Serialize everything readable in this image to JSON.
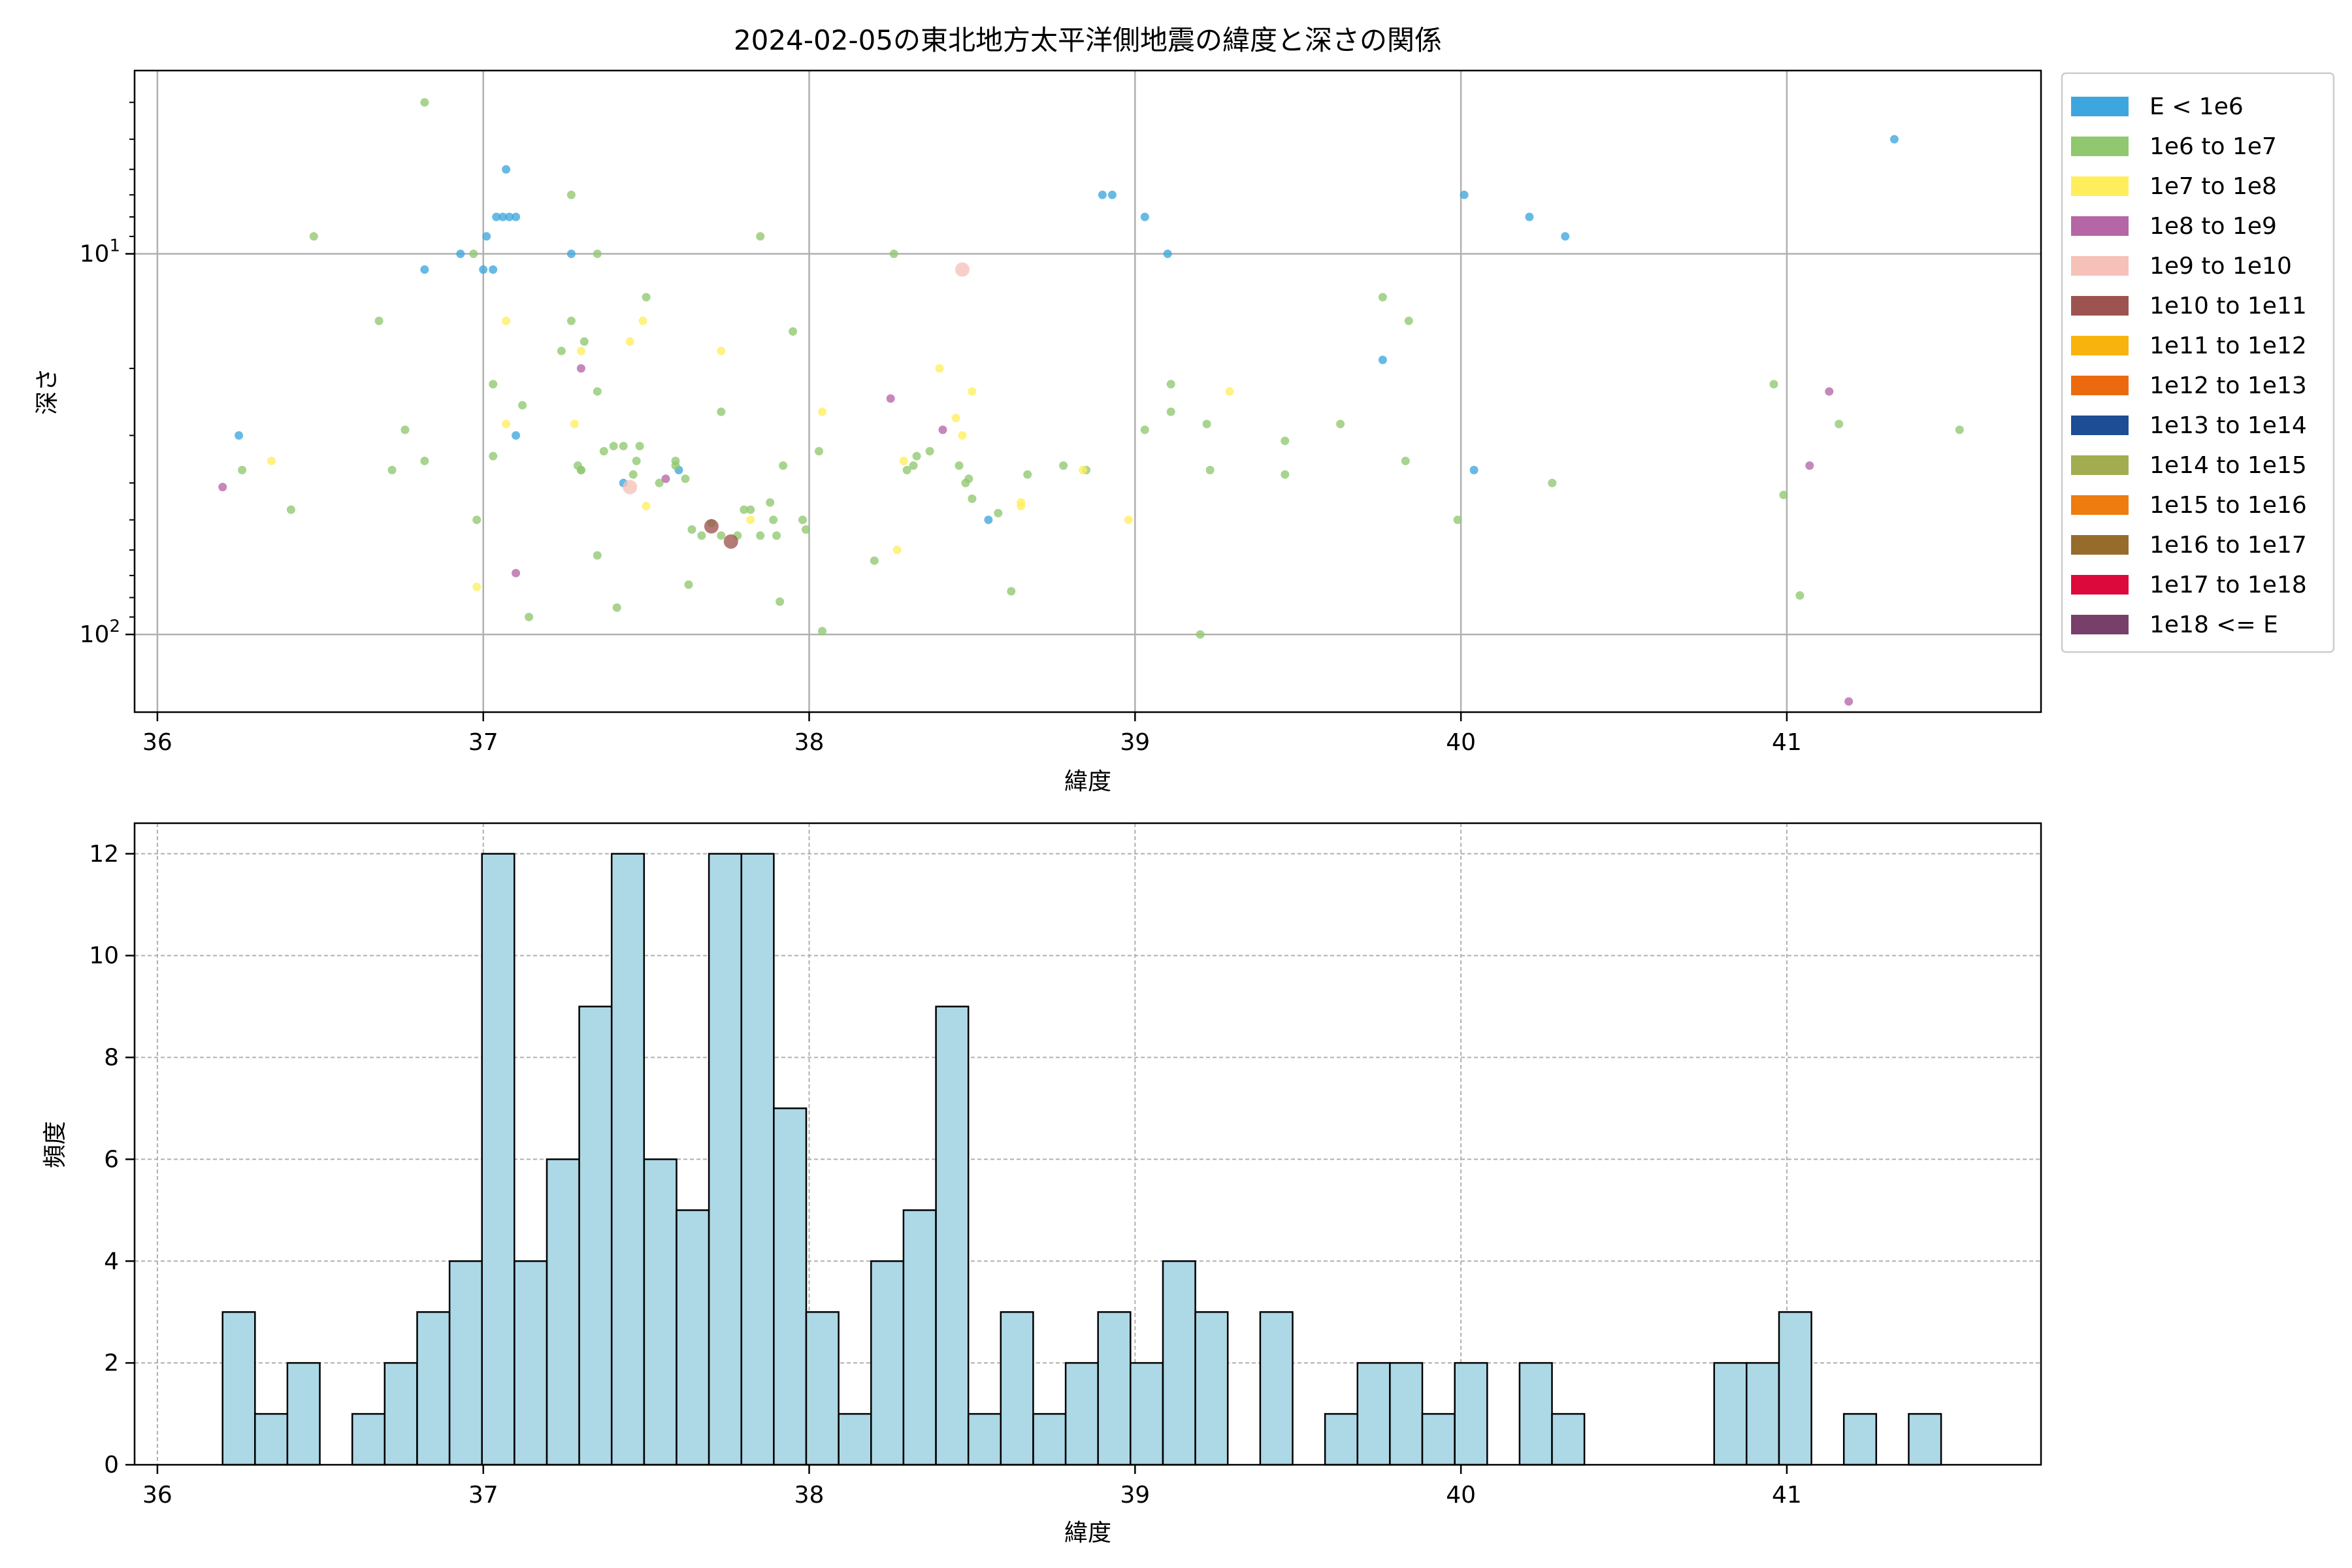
{
  "chart_data": [
    {
      "type": "scatter",
      "title": "2024-02-05の東北地方太平洋側地震の緯度と深さの関係",
      "xlabel": "緯度",
      "ylabel": "深さ",
      "xlim": [
        35.93,
        41.78
      ],
      "ylim": [
        160,
        3.3
      ],
      "y_scale": "log",
      "y_inverted": true,
      "grid": true,
      "legend_position": "outside-right",
      "x_ticks": [
        {
          "v": 36,
          "label": "36"
        },
        {
          "v": 37,
          "label": "37"
        },
        {
          "v": 38,
          "label": "38"
        },
        {
          "v": 39,
          "label": "39"
        },
        {
          "v": 40,
          "label": "40"
        },
        {
          "v": 41,
          "label": "41"
        }
      ],
      "y_ticks": [
        {
          "v": 10,
          "base": "10",
          "exp": "1"
        },
        {
          "v": 100,
          "base": "10",
          "exp": "2"
        }
      ],
      "legend": [
        {
          "label": "E < 1e6",
          "color": "#3ea6de"
        },
        {
          "label": "1e6 to 1e7",
          "color": "#8fc86f"
        },
        {
          "label": "1e7 to 1e8",
          "color": "#ffee5c"
        },
        {
          "label": "1e8 to 1e9",
          "color": "#b566a6"
        },
        {
          "label": "1e9 to 1e10",
          "color": "#f6c1b8"
        },
        {
          "label": "1e10 to 1e11",
          "color": "#9d5450"
        },
        {
          "label": "1e11 to 1e12",
          "color": "#f8b40c"
        },
        {
          "label": "1e12 to 1e13",
          "color": "#ec6a0e"
        },
        {
          "label": "1e13 to 1e14",
          "color": "#1d4d95"
        },
        {
          "label": "1e14 to 1e15",
          "color": "#a2ad4f"
        },
        {
          "label": "1e15 to 1e16",
          "color": "#ee7c0f"
        },
        {
          "label": "1e16 to 1e17",
          "color": "#966c2c"
        },
        {
          "label": "1e17 to 1e18",
          "color": "#dc0a3c"
        },
        {
          "label": "1e18 <= E",
          "color": "#793f6b"
        }
      ],
      "series": [
        {
          "name": "E < 1e6",
          "color": "#3ea6de",
          "points": [
            [
              36.25,
              30
            ],
            [
              36.82,
              11
            ],
            [
              36.93,
              10
            ],
            [
              37.0,
              11
            ],
            [
              37.01,
              9
            ],
            [
              37.03,
              11
            ],
            [
              37.04,
              8
            ],
            [
              37.07,
              6
            ],
            [
              37.06,
              8
            ],
            [
              37.08,
              8
            ],
            [
              37.1,
              8
            ],
            [
              37.1,
              30
            ],
            [
              37.27,
              10
            ],
            [
              37.43,
              40
            ],
            [
              37.6,
              37
            ],
            [
              38.55,
              50
            ],
            [
              38.9,
              7
            ],
            [
              38.93,
              7
            ],
            [
              39.03,
              8
            ],
            [
              39.1,
              10
            ],
            [
              39.76,
              19
            ],
            [
              40.01,
              7
            ],
            [
              40.04,
              37
            ],
            [
              40.21,
              8
            ],
            [
              40.32,
              9
            ],
            [
              41.33,
              5
            ]
          ]
        },
        {
          "name": "1e6 to 1e7",
          "color": "#8fc86f",
          "points": [
            [
              36.48,
              9
            ],
            [
              36.68,
              15
            ],
            [
              36.82,
              4
            ],
            [
              36.97,
              10
            ],
            [
              36.98,
              50
            ],
            [
              36.26,
              37
            ],
            [
              36.41,
              47
            ],
            [
              36.72,
              37
            ],
            [
              36.76,
              29
            ],
            [
              36.82,
              35
            ],
            [
              37.03,
              22
            ],
            [
              37.03,
              34
            ],
            [
              37.12,
              25
            ],
            [
              37.24,
              18
            ],
            [
              37.27,
              15
            ],
            [
              37.27,
              7
            ],
            [
              37.3,
              37
            ],
            [
              37.31,
              17
            ],
            [
              37.29,
              36
            ],
            [
              37.3,
              37
            ],
            [
              37.35,
              23
            ],
            [
              37.35,
              10
            ],
            [
              37.37,
              33
            ],
            [
              37.4,
              32
            ],
            [
              37.43,
              32
            ],
            [
              37.46,
              38
            ],
            [
              37.48,
              32
            ],
            [
              37.47,
              35
            ],
            [
              37.5,
              13
            ],
            [
              37.54,
              40
            ],
            [
              37.59,
              35
            ],
            [
              37.59,
              36
            ],
            [
              37.62,
              39
            ],
            [
              37.64,
              53
            ],
            [
              37.67,
              55
            ],
            [
              37.7,
              51
            ],
            [
              37.73,
              55
            ],
            [
              37.78,
              55
            ],
            [
              37.8,
              47
            ],
            [
              37.82,
              47
            ],
            [
              37.85,
              55
            ],
            [
              37.88,
              45
            ],
            [
              37.89,
              50
            ],
            [
              37.9,
              55
            ],
            [
              37.92,
              36
            ],
            [
              37.95,
              16
            ],
            [
              37.98,
              50
            ],
            [
              37.99,
              53
            ],
            [
              38.03,
              33
            ],
            [
              38.2,
              64
            ],
            [
              38.26,
              10
            ],
            [
              38.3,
              37
            ],
            [
              38.33,
              34
            ],
            [
              38.37,
              33
            ],
            [
              38.46,
              36
            ],
            [
              38.48,
              40
            ],
            [
              38.49,
              39
            ],
            [
              38.5,
              44
            ],
            [
              38.58,
              48
            ],
            [
              38.67,
              38
            ],
            [
              38.78,
              36
            ],
            [
              38.85,
              37
            ],
            [
              38.62,
              77
            ],
            [
              37.63,
              74
            ],
            [
              37.73,
              26
            ],
            [
              37.85,
              9
            ],
            [
              38.04,
              98
            ],
            [
              38.32,
              36
            ],
            [
              39.03,
              29
            ],
            [
              39.11,
              26
            ],
            [
              39.11,
              22
            ],
            [
              39.22,
              28
            ],
            [
              39.23,
              37
            ],
            [
              39.46,
              38
            ],
            [
              39.46,
              31
            ],
            [
              39.63,
              28
            ],
            [
              39.76,
              13
            ],
            [
              39.83,
              35
            ],
            [
              39.84,
              15
            ],
            [
              39.99,
              50
            ],
            [
              40.28,
              40
            ],
            [
              40.96,
              22
            ],
            [
              40.99,
              43
            ],
            [
              41.04,
              79
            ],
            [
              41.16,
              28
            ],
            [
              41.53,
              29
            ],
            [
              37.14,
              90
            ],
            [
              37.35,
              62
            ],
            [
              37.41,
              85
            ],
            [
              37.91,
              82
            ],
            [
              39.2,
              100
            ]
          ]
        },
        {
          "name": "1e7 to 1e8",
          "color": "#ffee5c",
          "points": [
            [
              36.35,
              35
            ],
            [
              37.07,
              15
            ],
            [
              37.07,
              28
            ],
            [
              37.28,
              28
            ],
            [
              37.3,
              18
            ],
            [
              37.45,
              17
            ],
            [
              37.49,
              15
            ],
            [
              37.5,
              46
            ],
            [
              37.73,
              18
            ],
            [
              37.82,
              50
            ],
            [
              38.04,
              26
            ],
            [
              38.27,
              60
            ],
            [
              38.29,
              35
            ],
            [
              38.4,
              20
            ],
            [
              38.45,
              27
            ],
            [
              38.47,
              30
            ],
            [
              38.5,
              23
            ],
            [
              38.65,
              46
            ],
            [
              38.65,
              45
            ],
            [
              38.84,
              37
            ],
            [
              38.98,
              50
            ],
            [
              39.29,
              23
            ],
            [
              36.98,
              75
            ]
          ]
        },
        {
          "name": "1e8 to 1e9",
          "color": "#b566a6",
          "points": [
            [
              36.2,
              41
            ],
            [
              37.1,
              69
            ],
            [
              37.3,
              20
            ],
            [
              37.56,
              39
            ],
            [
              38.25,
              24
            ],
            [
              38.41,
              29
            ],
            [
              41.07,
              36
            ],
            [
              41.13,
              23
            ],
            [
              41.19,
              150
            ]
          ]
        },
        {
          "name": "1e9 to 1e10",
          "color": "#f6c1b8",
          "points": [
            [
              38.47,
              11
            ],
            [
              37.45,
              41
            ]
          ]
        },
        {
          "name": "1e10 to 1e11",
          "color": "#9d5450",
          "points": [
            [
              37.7,
              52
            ],
            [
              37.76,
              57
            ]
          ]
        }
      ]
    },
    {
      "type": "bar",
      "subtype": "histogram",
      "xlabel": "緯度",
      "ylabel": "頻度",
      "xlim": [
        35.93,
        41.78
      ],
      "ylim": [
        0,
        12.6
      ],
      "grid": true,
      "bar_color": "#add8e6",
      "edge_color": "#000000",
      "bin_start": 36.2,
      "bin_width": 0.0995,
      "values": [
        3,
        1,
        2,
        0,
        1,
        2,
        3,
        4,
        12,
        4,
        6,
        9,
        12,
        6,
        5,
        12,
        12,
        7,
        3,
        1,
        4,
        5,
        9,
        1,
        3,
        1,
        2,
        3,
        2,
        4,
        3,
        0,
        3,
        0,
        1,
        2,
        2,
        1,
        2,
        0,
        2,
        1,
        0,
        0,
        0,
        0,
        2,
        2,
        3,
        0,
        1,
        0,
        1
      ],
      "x_ticks": [
        {
          "v": 36,
          "label": "36"
        },
        {
          "v": 37,
          "label": "37"
        },
        {
          "v": 38,
          "label": "38"
        },
        {
          "v": 39,
          "label": "39"
        },
        {
          "v": 40,
          "label": "40"
        },
        {
          "v": 41,
          "label": "41"
        }
      ],
      "y_ticks": [
        {
          "v": 0,
          "label": "0"
        },
        {
          "v": 2,
          "label": "2"
        },
        {
          "v": 4,
          "label": "4"
        },
        {
          "v": 6,
          "label": "6"
        },
        {
          "v": 8,
          "label": "8"
        },
        {
          "v": 10,
          "label": "10"
        },
        {
          "v": 12,
          "label": "12"
        }
      ]
    }
  ]
}
